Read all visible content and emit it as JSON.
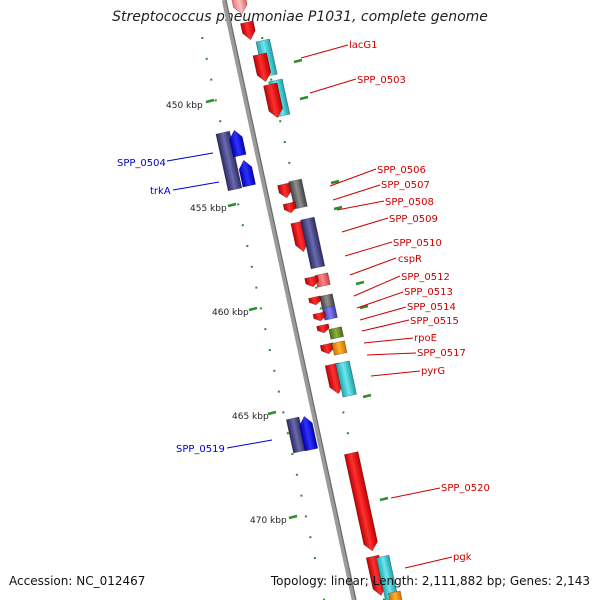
{
  "title": "Streptococcus pneumoniae P1031, complete genome",
  "footer": {
    "accession": "Accession: NC_012467",
    "topology": "Topology: linear; Length: 2,111,882 bp; Genes: 2,143"
  },
  "colors": {
    "backbone": "#8a8a8a",
    "tick": "#2e8b2e",
    "forward_label": "#cc0000",
    "reverse_label": "#0000cc"
  },
  "scale_labels": [
    "450 kbp",
    "455 kbp",
    "460 kbp",
    "465 kbp",
    "470 kbp"
  ],
  "gene_labels": [
    {
      "text": "lacG1",
      "strand": "+"
    },
    {
      "text": "SPP_0503",
      "strand": "+"
    },
    {
      "text": "SPP_0504",
      "strand": "-"
    },
    {
      "text": "trkA",
      "strand": "-"
    },
    {
      "text": "SPP_0506",
      "strand": "+"
    },
    {
      "text": "SPP_0507",
      "strand": "+"
    },
    {
      "text": "SPP_0508",
      "strand": "+"
    },
    {
      "text": "SPP_0509",
      "strand": "+"
    },
    {
      "text": "SPP_0510",
      "strand": "+"
    },
    {
      "text": "cspR",
      "strand": "+"
    },
    {
      "text": "SPP_0512",
      "strand": "+"
    },
    {
      "text": "SPP_0513",
      "strand": "+"
    },
    {
      "text": "SPP_0514",
      "strand": "+"
    },
    {
      "text": "SPP_0515",
      "strand": "+"
    },
    {
      "text": "rpoE",
      "strand": "+"
    },
    {
      "text": "SPP_0517",
      "strand": "+"
    },
    {
      "text": "pyrG",
      "strand": "+"
    },
    {
      "text": "SPP_0519",
      "strand": "-"
    },
    {
      "text": "SPP_0520",
      "strand": "+"
    },
    {
      "text": "pgk",
      "strand": "+"
    }
  ]
}
